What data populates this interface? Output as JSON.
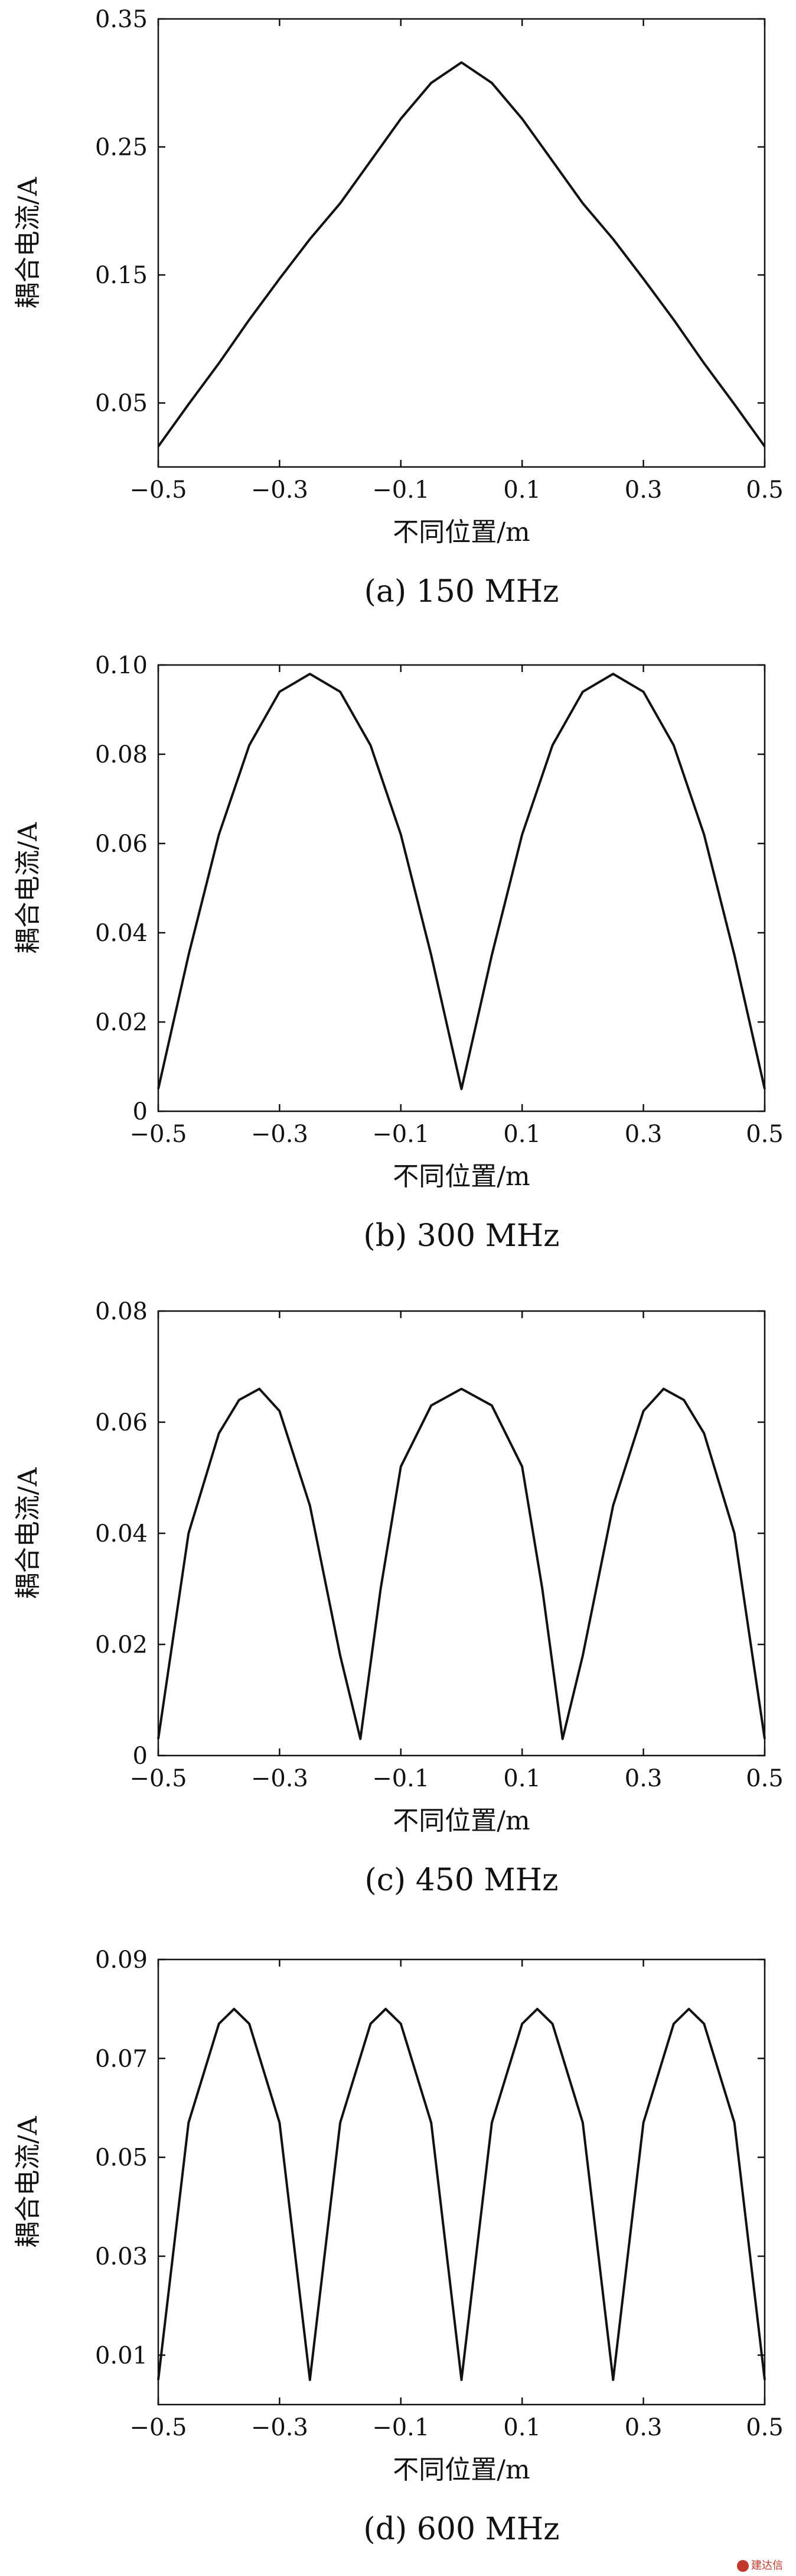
{
  "chart_data": [
    {
      "type": "line",
      "caption": "(a) 150 MHz",
      "xlabel": "不同位置/m",
      "ylabel": "耦合电流/A",
      "xlim": [
        -0.5,
        0.5
      ],
      "ylim": [
        0,
        0.35
      ],
      "xticks": [
        "-0.5",
        "-0.3",
        "-0.1",
        "0.1",
        "0.3",
        "0.5"
      ],
      "yticks": [
        "0.05",
        "0.15",
        "0.25",
        "0.35"
      ],
      "series": [
        {
          "x": [
            -0.5,
            -0.45,
            -0.4,
            -0.35,
            -0.3,
            -0.25,
            -0.2,
            -0.15,
            -0.1,
            -0.05,
            0,
            0.05,
            0.1,
            0.15,
            0.2,
            0.25,
            0.3,
            0.35,
            0.4,
            0.45,
            0.5
          ],
          "y": [
            0.016,
            0.049,
            0.081,
            0.115,
            0.147,
            0.178,
            0.206,
            0.239,
            0.272,
            0.3,
            0.316,
            0.3,
            0.272,
            0.239,
            0.206,
            0.178,
            0.147,
            0.115,
            0.081,
            0.049,
            0.016
          ]
        }
      ]
    },
    {
      "type": "line",
      "caption": "(b) 300 MHz",
      "xlabel": "不同位置/m",
      "ylabel": "耦合电流/A",
      "xlim": [
        -0.5,
        0.5
      ],
      "ylim": [
        0,
        0.1
      ],
      "xticks": [
        "-0.5",
        "-0.3",
        "-0.1",
        "0.1",
        "0.3",
        "0.5"
      ],
      "yticks": [
        "0",
        "0.02",
        "0.04",
        "0.06",
        "0.08",
        "0.10"
      ],
      "series": [
        {
          "x": [
            -0.5,
            -0.45,
            -0.4,
            -0.35,
            -0.3,
            -0.25,
            -0.2,
            -0.15,
            -0.1,
            -0.05,
            0,
            0.05,
            0.1,
            0.15,
            0.2,
            0.25,
            0.3,
            0.35,
            0.4,
            0.45,
            0.5
          ],
          "y": [
            0.005,
            0.035,
            0.062,
            0.082,
            0.094,
            0.098,
            0.094,
            0.082,
            0.062,
            0.035,
            0.005,
            0.035,
            0.062,
            0.082,
            0.094,
            0.098,
            0.094,
            0.082,
            0.062,
            0.035,
            0.005
          ]
        }
      ]
    },
    {
      "type": "line",
      "caption": "(c) 450 MHz",
      "xlabel": "不同位置/m",
      "ylabel": "耦合电流/A",
      "xlim": [
        -0.5,
        0.5
      ],
      "ylim": [
        0,
        0.08
      ],
      "xticks": [
        "-0.5",
        "-0.3",
        "-0.1",
        "0.1",
        "0.3",
        "0.5"
      ],
      "yticks": [
        "0",
        "0.02",
        "0.04",
        "0.06",
        "0.08"
      ],
      "series": [
        {
          "x": [
            -0.5,
            -0.45,
            -0.4,
            -0.3667,
            -0.3333,
            -0.3,
            -0.25,
            -0.2,
            -0.1667,
            -0.1333,
            -0.1,
            -0.05,
            0,
            0.05,
            0.1,
            0.1333,
            0.1667,
            0.2,
            0.25,
            0.3,
            0.3333,
            0.3667,
            0.4,
            0.45,
            0.5
          ],
          "y": [
            0.003,
            0.04,
            0.058,
            0.064,
            0.066,
            0.062,
            0.045,
            0.018,
            0.003,
            0.03,
            0.052,
            0.063,
            0.066,
            0.063,
            0.052,
            0.03,
            0.003,
            0.018,
            0.045,
            0.062,
            0.066,
            0.064,
            0.058,
            0.04,
            0.003
          ]
        }
      ]
    },
    {
      "type": "line",
      "caption": "(d) 600 MHz",
      "xlabel": "不同位置/m",
      "ylabel": "耦合电流/A",
      "xlim": [
        -0.5,
        0.5
      ],
      "ylim": [
        0,
        0.09
      ],
      "xticks": [
        "-0.5",
        "-0.3",
        "-0.1",
        "0.1",
        "0.3",
        "0.5"
      ],
      "yticks": [
        "0.01",
        "0.03",
        "0.05",
        "0.07",
        "0.09"
      ],
      "series": [
        {
          "x": [
            -0.5,
            -0.45,
            -0.4,
            -0.375,
            -0.35,
            -0.3,
            -0.25,
            -0.2,
            -0.15,
            -0.125,
            -0.1,
            -0.05,
            0,
            0.05,
            0.1,
            0.125,
            0.15,
            0.2,
            0.25,
            0.3,
            0.35,
            0.375,
            0.4,
            0.45,
            0.5
          ],
          "y": [
            0.005,
            0.057,
            0.077,
            0.08,
            0.077,
            0.057,
            0.005,
            0.057,
            0.077,
            0.08,
            0.077,
            0.057,
            0.005,
            0.057,
            0.077,
            0.08,
            0.077,
            0.057,
            0.005,
            0.057,
            0.077,
            0.08,
            0.077,
            0.057,
            0.005
          ]
        }
      ]
    }
  ],
  "watermark": {
    "text": "建达信"
  }
}
